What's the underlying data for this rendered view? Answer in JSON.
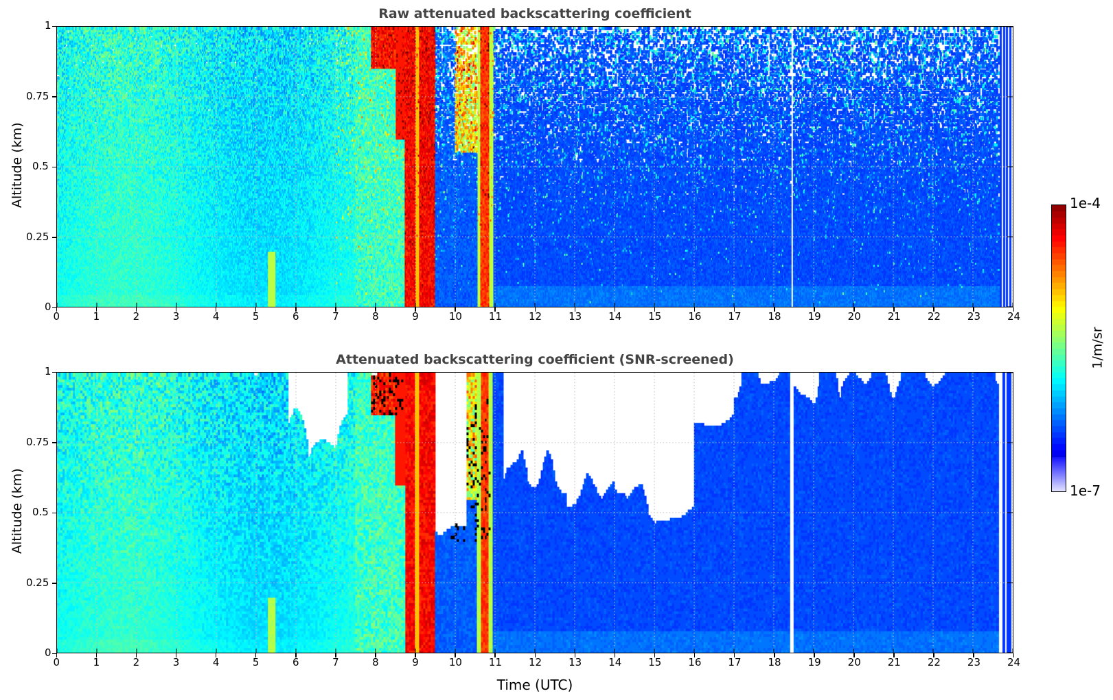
{
  "chart_data": [
    {
      "type": "heatmap",
      "title": "Raw attenuated backscattering coefficient",
      "xlabel": "",
      "ylabel": "Altitude (km)",
      "xlim": [
        0,
        24
      ],
      "ylim": [
        0,
        1
      ],
      "xticks": [
        "0",
        "1",
        "2",
        "3",
        "4",
        "5",
        "6",
        "7",
        "8",
        "9",
        "10",
        "11",
        "12",
        "13",
        "14",
        "15",
        "16",
        "17",
        "18",
        "19",
        "20",
        "21",
        "22",
        "23",
        "24"
      ],
      "yticks": [
        "0",
        "0.25",
        "0.5",
        "0.75",
        "1"
      ],
      "grid": true,
      "screened": false
    },
    {
      "type": "heatmap",
      "title": "Attenuated backscattering coefficient (SNR-screened)",
      "xlabel": "Time (UTC)",
      "ylabel": "Altitude (km)",
      "xlim": [
        0,
        24
      ],
      "ylim": [
        0,
        1
      ],
      "xticks": [
        "0",
        "1",
        "2",
        "3",
        "4",
        "5",
        "6",
        "7",
        "8",
        "9",
        "10",
        "11",
        "12",
        "13",
        "14",
        "15",
        "16",
        "17",
        "18",
        "19",
        "20",
        "21",
        "22",
        "23",
        "24"
      ],
      "yticks": [
        "0",
        "0.25",
        "0.5",
        "0.75",
        "1"
      ],
      "grid": true,
      "screened": true
    }
  ],
  "colorbar": {
    "label": "1/m/sr",
    "max_label": "1e-4",
    "min_label": "1e-7",
    "log_range": [
      -7,
      -4
    ],
    "colormap": "jet"
  }
}
